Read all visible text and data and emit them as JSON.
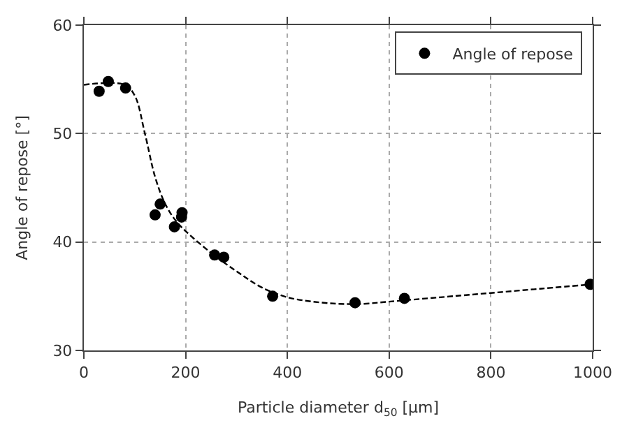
{
  "chart_data": {
    "type": "scatter",
    "xlabel": "Particle diameter d$_{50}$ [µm]",
    "ylabel": "Angle of repose [°]",
    "xlim": [
      0,
      1000
    ],
    "xticks": [
      0,
      200,
      400,
      600,
      800,
      1000
    ],
    "ylim": [
      30,
      60
    ],
    "yticks": [
      30,
      40,
      50,
      60
    ],
    "grid": true,
    "legend": "top right",
    "series": [
      {
        "name": "Angle of repose",
        "color": "#000000",
        "marker": "circle",
        "x": [
          30,
          48,
          82,
          140,
          150,
          178,
          192,
          193,
          257,
          275,
          371,
          533,
          630,
          995
        ],
        "values": [
          53.9,
          54.8,
          54.2,
          42.5,
          43.5,
          41.4,
          42.3,
          42.7,
          38.8,
          38.6,
          35.0,
          34.4,
          34.8,
          36.1
        ]
      },
      {
        "type": "line",
        "color": "#000000",
        "line_style": "dashed",
        "marker": "none",
        "x": [
          0,
          80,
          100,
          120,
          140,
          160,
          180,
          200,
          250,
          300,
          350,
          400,
          450,
          500,
          550,
          600,
          700,
          800,
          900,
          1000
        ],
        "values": [
          54.5,
          54.5,
          53.5,
          50,
          46,
          43.5,
          42,
          41,
          39,
          37.3,
          35.8,
          34.9,
          34.5,
          34.3,
          34.3,
          34.5,
          34.9,
          35.3,
          35.7,
          36.1
        ]
      }
    ]
  }
}
